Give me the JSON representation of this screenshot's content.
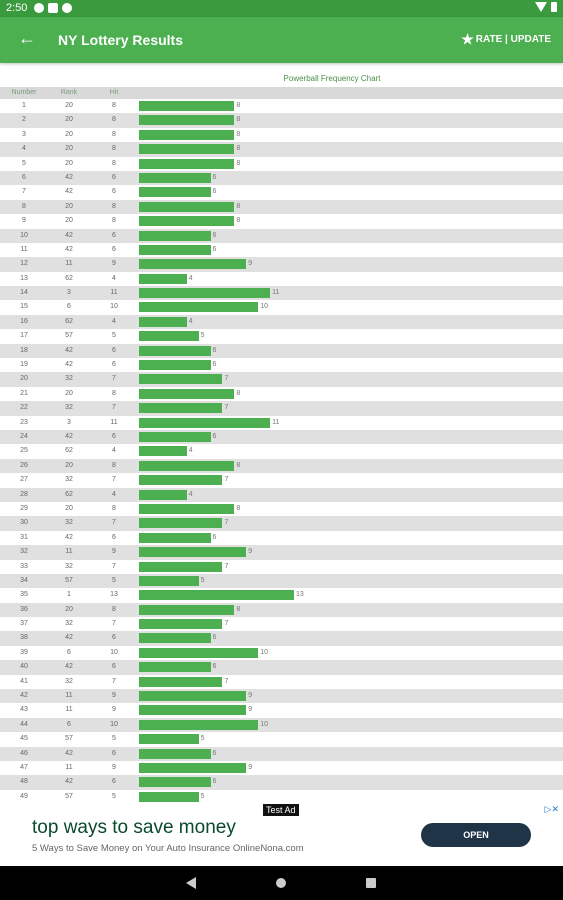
{
  "status_bar": {
    "time": "2:50"
  },
  "app_bar": {
    "title": "NY Lottery Results",
    "rate_update_label": "RATE | UPDATE"
  },
  "chart_data": {
    "type": "bar",
    "title": "Powerball Frequency Chart",
    "columns": [
      "Number",
      "Rank",
      "Hit"
    ],
    "rows": [
      {
        "number": "1",
        "rank": "20",
        "hit": 8
      },
      {
        "number": "2",
        "rank": "20",
        "hit": 8
      },
      {
        "number": "3",
        "rank": "20",
        "hit": 8
      },
      {
        "number": "4",
        "rank": "20",
        "hit": 8
      },
      {
        "number": "5",
        "rank": "20",
        "hit": 8
      },
      {
        "number": "6",
        "rank": "42",
        "hit": 6
      },
      {
        "number": "7",
        "rank": "42",
        "hit": 6
      },
      {
        "number": "8",
        "rank": "20",
        "hit": 8
      },
      {
        "number": "9",
        "rank": "20",
        "hit": 8
      },
      {
        "number": "10",
        "rank": "42",
        "hit": 6
      },
      {
        "number": "11",
        "rank": "42",
        "hit": 6
      },
      {
        "number": "12",
        "rank": "11",
        "hit": 9
      },
      {
        "number": "13",
        "rank": "62",
        "hit": 4
      },
      {
        "number": "14",
        "rank": "3",
        "hit": 11
      },
      {
        "number": "15",
        "rank": "6",
        "hit": 10
      },
      {
        "number": "16",
        "rank": "62",
        "hit": 4
      },
      {
        "number": "17",
        "rank": "57",
        "hit": 5
      },
      {
        "number": "18",
        "rank": "42",
        "hit": 6
      },
      {
        "number": "19",
        "rank": "42",
        "hit": 6
      },
      {
        "number": "20",
        "rank": "32",
        "hit": 7
      },
      {
        "number": "21",
        "rank": "20",
        "hit": 8
      },
      {
        "number": "22",
        "rank": "32",
        "hit": 7
      },
      {
        "number": "23",
        "rank": "3",
        "hit": 11
      },
      {
        "number": "24",
        "rank": "42",
        "hit": 6
      },
      {
        "number": "25",
        "rank": "62",
        "hit": 4
      },
      {
        "number": "26",
        "rank": "20",
        "hit": 8
      },
      {
        "number": "27",
        "rank": "32",
        "hit": 7
      },
      {
        "number": "28",
        "rank": "62",
        "hit": 4
      },
      {
        "number": "29",
        "rank": "20",
        "hit": 8
      },
      {
        "number": "30",
        "rank": "32",
        "hit": 7
      },
      {
        "number": "31",
        "rank": "42",
        "hit": 6
      },
      {
        "number": "32",
        "rank": "11",
        "hit": 9
      },
      {
        "number": "33",
        "rank": "32",
        "hit": 7
      },
      {
        "number": "34",
        "rank": "57",
        "hit": 5
      },
      {
        "number": "35",
        "rank": "1",
        "hit": 13
      },
      {
        "number": "36",
        "rank": "20",
        "hit": 8
      },
      {
        "number": "37",
        "rank": "32",
        "hit": 7
      },
      {
        "number": "38",
        "rank": "42",
        "hit": 6
      },
      {
        "number": "39",
        "rank": "6",
        "hit": 10
      },
      {
        "number": "40",
        "rank": "42",
        "hit": 6
      },
      {
        "number": "41",
        "rank": "32",
        "hit": 7
      },
      {
        "number": "42",
        "rank": "11",
        "hit": 9
      },
      {
        "number": "43",
        "rank": "11",
        "hit": 9
      },
      {
        "number": "44",
        "rank": "6",
        "hit": 10
      },
      {
        "number": "45",
        "rank": "57",
        "hit": 5
      },
      {
        "number": "46",
        "rank": "42",
        "hit": 6
      },
      {
        "number": "47",
        "rank": "11",
        "hit": 9
      },
      {
        "number": "48",
        "rank": "42",
        "hit": 6
      },
      {
        "number": "49",
        "rank": "57",
        "hit": 5
      }
    ],
    "xlim": [
      0,
      13
    ],
    "bar_color": "#4caf50"
  },
  "ad": {
    "tag": "Test Ad",
    "headline": "top ways to save money",
    "subtext": "5 Ways to Save Money on Your Auto Insurance OnlineNona.com",
    "button_label": "OPEN",
    "choices_icon": "ad-choices-icon"
  },
  "colors": {
    "appbar": "#4caf50",
    "statusbar": "#3a9a3e",
    "ad_button": "#1f3447"
  }
}
